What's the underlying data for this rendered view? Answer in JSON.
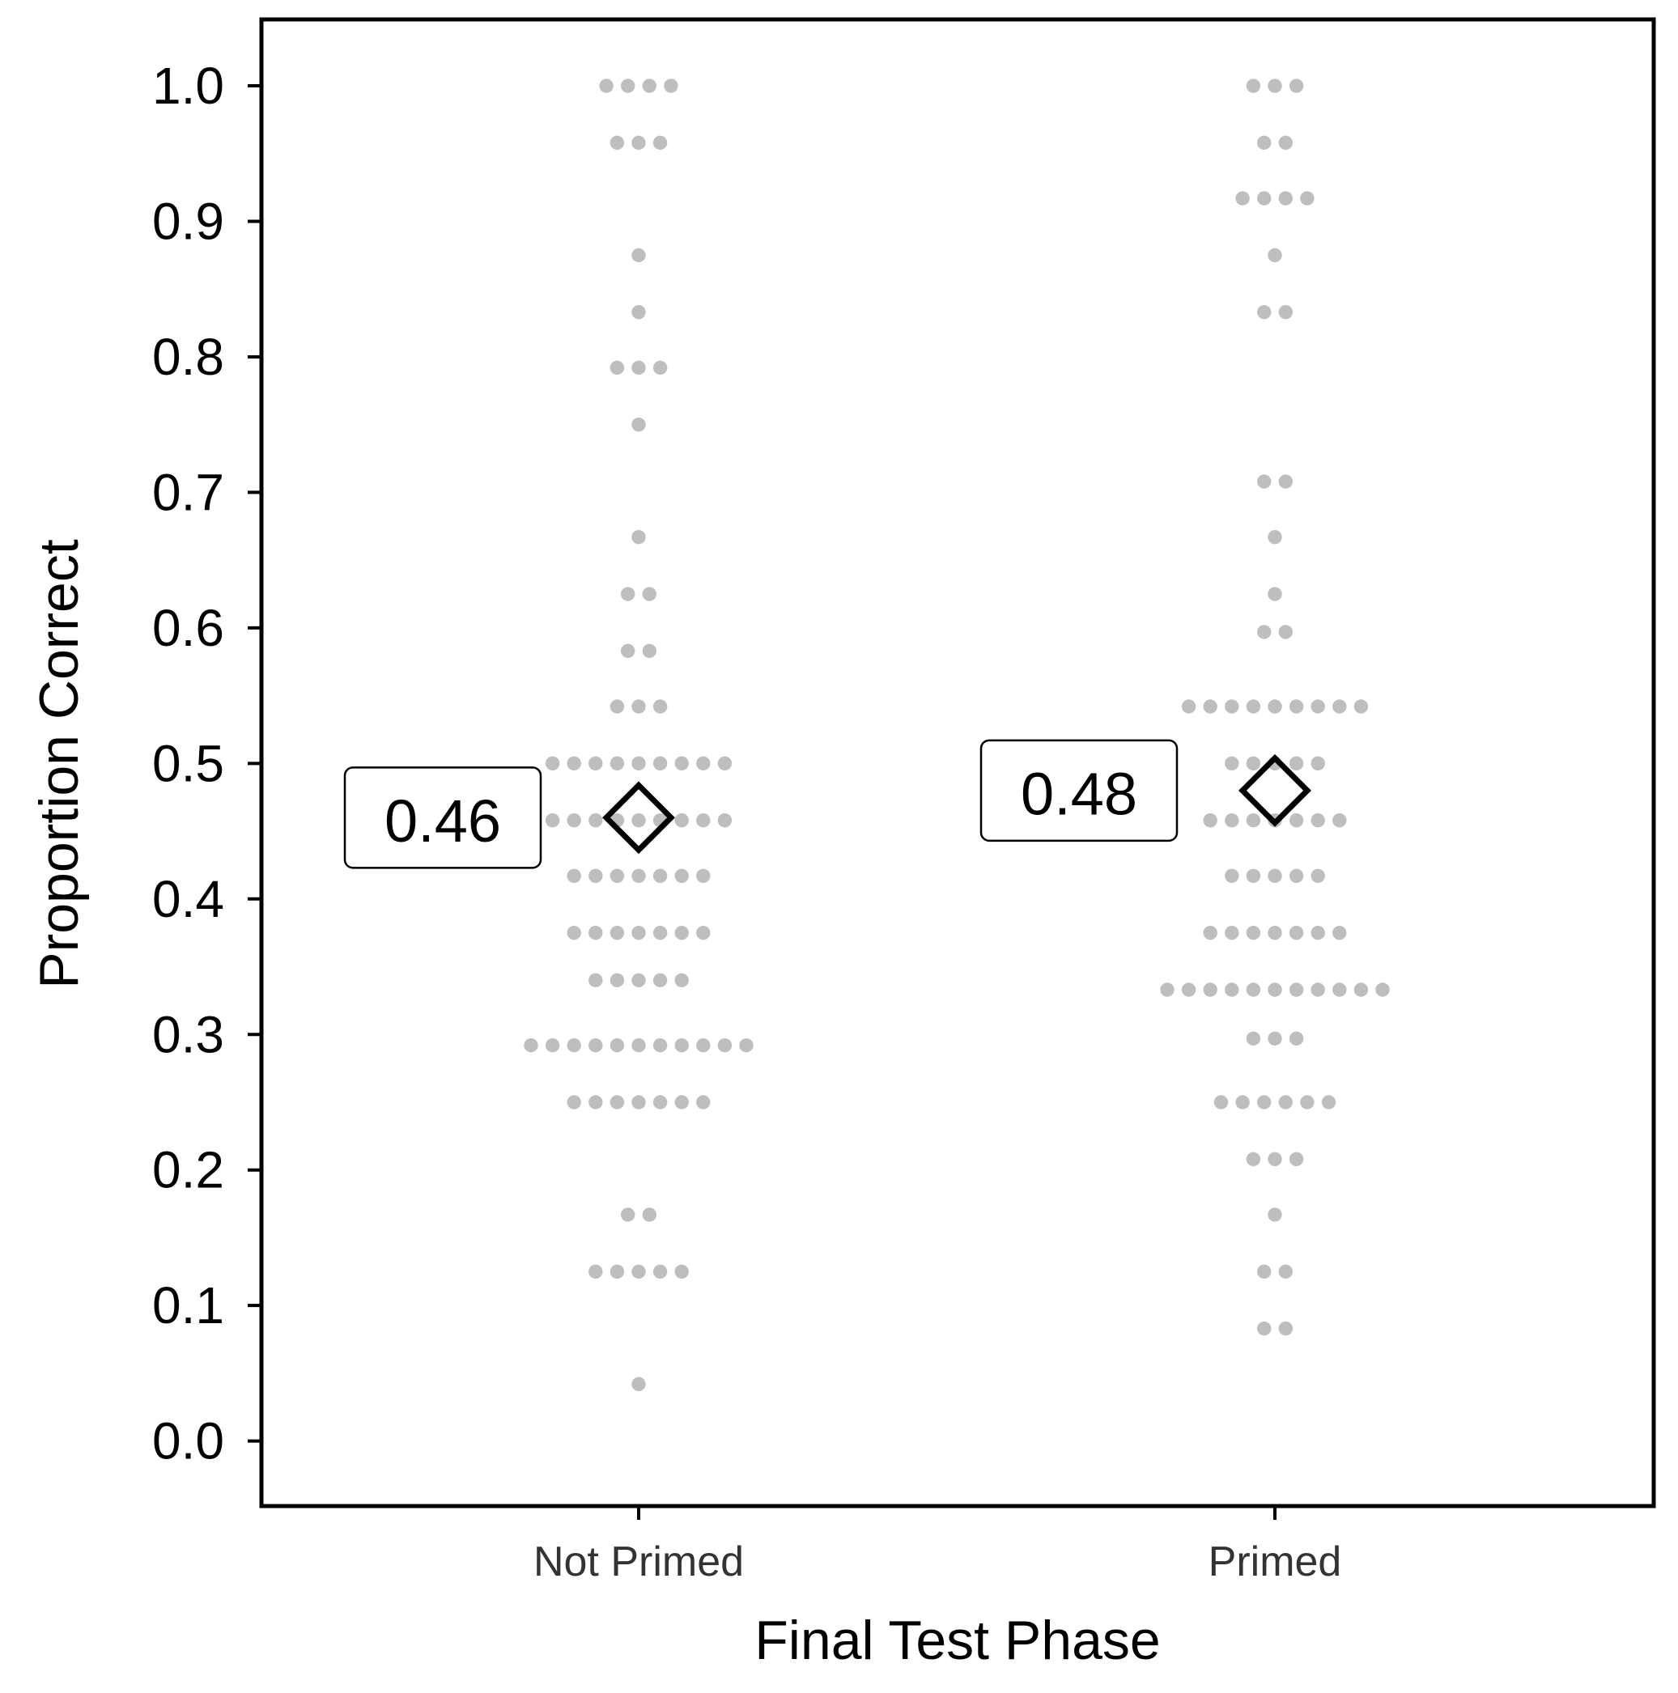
{
  "chart_data": {
    "type": "dotplot",
    "x_label": "Final Test Phase",
    "y_label": "Proportion Correct",
    "categories": [
      "Not Primed",
      "Primed"
    ],
    "values": [
      [
        1,
        1,
        1,
        1,
        0.958,
        0.958,
        0.958,
        0.875,
        0.833,
        0.792,
        0.792,
        0.792,
        0.75,
        0.667,
        0.625,
        0.625,
        0.583,
        0.583,
        0.542,
        0.542,
        0.542,
        0.5,
        0.5,
        0.5,
        0.5,
        0.5,
        0.5,
        0.5,
        0.5,
        0.5,
        0.458,
        0.458,
        0.458,
        0.458,
        0.458,
        0.458,
        0.458,
        0.458,
        0.458,
        0.417,
        0.417,
        0.417,
        0.417,
        0.417,
        0.417,
        0.417,
        0.375,
        0.375,
        0.375,
        0.375,
        0.375,
        0.375,
        0.375,
        0.34,
        0.34,
        0.34,
        0.34,
        0.34,
        0.292,
        0.292,
        0.292,
        0.292,
        0.292,
        0.292,
        0.292,
        0.292,
        0.292,
        0.292,
        0.292,
        0.25,
        0.25,
        0.25,
        0.25,
        0.25,
        0.25,
        0.25,
        0.167,
        0.167,
        0.125,
        0.125,
        0.125,
        0.125,
        0.125,
        0.042
      ],
      [
        1,
        1,
        1,
        0.958,
        0.958,
        0.917,
        0.917,
        0.917,
        0.917,
        0.875,
        0.833,
        0.833,
        0.708,
        0.708,
        0.667,
        0.625,
        0.597,
        0.597,
        0.542,
        0.542,
        0.542,
        0.542,
        0.542,
        0.542,
        0.542,
        0.542,
        0.542,
        0.5,
        0.5,
        0.5,
        0.5,
        0.5,
        0.458,
        0.458,
        0.458,
        0.458,
        0.458,
        0.458,
        0.458,
        0.417,
        0.417,
        0.417,
        0.417,
        0.417,
        0.375,
        0.375,
        0.375,
        0.375,
        0.375,
        0.375,
        0.375,
        0.333,
        0.333,
        0.333,
        0.333,
        0.333,
        0.333,
        0.333,
        0.333,
        0.333,
        0.333,
        0.333,
        0.297,
        0.297,
        0.297,
        0.25,
        0.25,
        0.25,
        0.25,
        0.25,
        0.25,
        0.208,
        0.208,
        0.208,
        0.167,
        0.125,
        0.125,
        0.083,
        0.083
      ]
    ],
    "color": "#bebebe",
    "means": [
      0.46,
      0.48
    ],
    "ylim": [
      -0.048,
      1.049
    ],
    "yticks": [
      {
        "value": 0,
        "label": "0.0"
      },
      0.1,
      0.2,
      0.3,
      0.4,
      0.5,
      0.6,
      0.7,
      0.8,
      0.9,
      {
        "value": 1,
        "label": "1.0"
      }
    ]
  }
}
